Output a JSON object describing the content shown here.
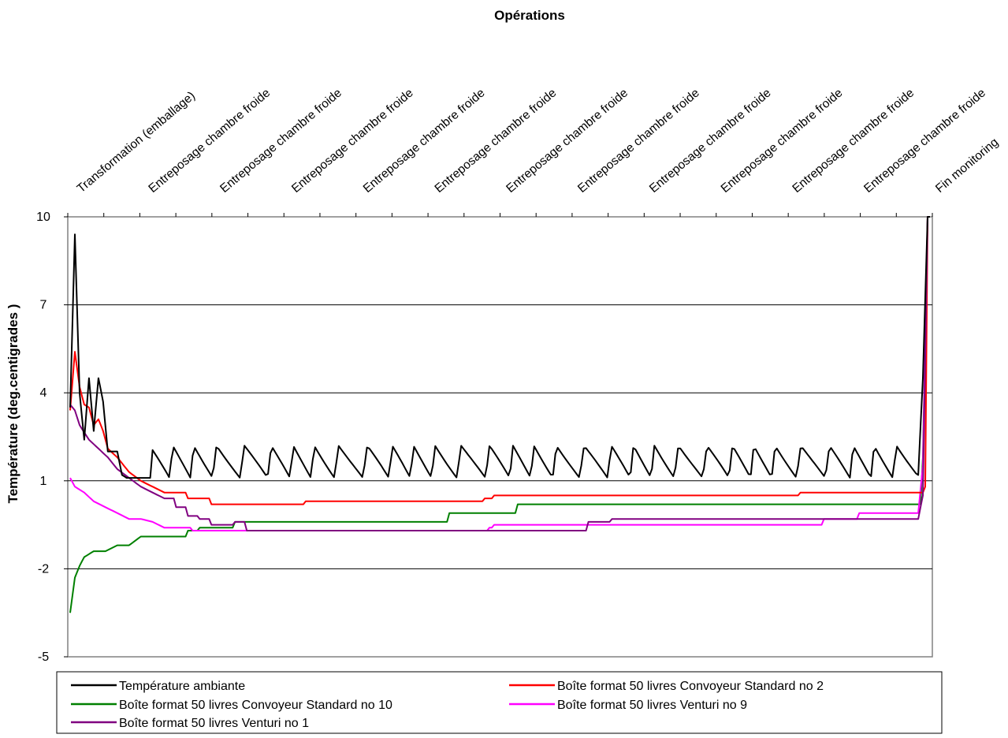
{
  "chart_data": {
    "type": "line",
    "title": "",
    "xlabel": "Opérations",
    "ylabel": "Température (deg.centigrades )",
    "ylim": [
      -5,
      10
    ],
    "yticks": [
      "10",
      "7",
      "4",
      "1",
      "-2",
      "-5"
    ],
    "ytick_values": [
      10,
      7,
      4,
      1,
      -2,
      -5
    ],
    "grid": "horizontal",
    "legend_position": "bottom",
    "x_axis_position": "top",
    "categories": [
      "Transformation (emballage)",
      "Entreposage chambre froide",
      "Entreposage chambre froide",
      "Entreposage chambre froide",
      "Entreposage chambre froide",
      "Entreposage chambre froide",
      "Entreposage chambre froide",
      "Entreposage chambre froide",
      "Entreposage chambre froide",
      "Entreposage chambre froide",
      "Entreposage chambre froide",
      "Entreposage chambre froide",
      "Fin monitoring"
    ],
    "n_points": 366,
    "series": [
      {
        "name": "Température ambiante",
        "color": "#000000",
        "pattern": "oscillating",
        "values_at_points": [
          [
            0,
            3.5
          ],
          [
            2,
            9.4
          ],
          [
            4,
            4.0
          ],
          [
            6,
            2.4
          ],
          [
            8,
            4.5
          ],
          [
            10,
            2.7
          ],
          [
            12,
            4.5
          ],
          [
            14,
            3.7
          ],
          [
            16,
            2.0
          ],
          [
            20,
            2.0
          ],
          [
            22,
            1.2
          ],
          [
            24,
            1.1
          ],
          [
            34,
            1.1
          ]
        ],
        "oscillation_low": 1.1,
        "oscillation_high": 2.2,
        "end_values": [
          [
            360,
            1.2
          ],
          [
            362,
            4.5
          ],
          [
            364,
            10.0
          ],
          [
            365,
            10.0
          ]
        ]
      },
      {
        "name": "Boîte format 50 livres Convoyeur Standard no 2",
        "color": "#ff0000",
        "values_at_points": [
          [
            0,
            3.4
          ],
          [
            2,
            5.4
          ],
          [
            4,
            4.2
          ],
          [
            6,
            3.6
          ],
          [
            8,
            3.5
          ],
          [
            10,
            2.9
          ],
          [
            12,
            3.1
          ],
          [
            14,
            2.7
          ],
          [
            16,
            2.1
          ],
          [
            20,
            1.8
          ],
          [
            25,
            1.3
          ],
          [
            30,
            1.0
          ],
          [
            35,
            0.8
          ],
          [
            40,
            0.6
          ],
          [
            50,
            0.4
          ],
          [
            60,
            0.2
          ],
          [
            90,
            0.2
          ],
          [
            100,
            0.3
          ],
          [
            120,
            0.3
          ],
          [
            175,
            0.3
          ],
          [
            176,
            0.4
          ],
          [
            180,
            0.5
          ],
          [
            300,
            0.5
          ],
          [
            310,
            0.6
          ],
          [
            362,
            0.6
          ],
          [
            363,
            0.8
          ],
          [
            364,
            10.0
          ]
        ]
      },
      {
        "name": "Boîte format 50 livres Convoyeur Standard no 10",
        "color": "#008000",
        "values_at_points": [
          [
            0,
            -3.5
          ],
          [
            2,
            -2.3
          ],
          [
            4,
            -1.9
          ],
          [
            6,
            -1.6
          ],
          [
            10,
            -1.4
          ],
          [
            15,
            -1.4
          ],
          [
            20,
            -1.2
          ],
          [
            25,
            -1.2
          ],
          [
            30,
            -0.9
          ],
          [
            45,
            -0.9
          ],
          [
            50,
            -0.7
          ],
          [
            55,
            -0.6
          ],
          [
            70,
            -0.4
          ],
          [
            80,
            -0.4
          ],
          [
            90,
            -0.4
          ],
          [
            160,
            -0.4
          ],
          [
            161,
            -0.1
          ],
          [
            180,
            -0.1
          ],
          [
            190,
            0.2
          ],
          [
            300,
            0.2
          ],
          [
            361,
            0.2
          ],
          [
            362,
            1.8
          ],
          [
            364,
            10.0
          ]
        ]
      },
      {
        "name": "Boîte format 50 livres Venturi no 9",
        "color": "#ff00ff",
        "values_at_points": [
          [
            0,
            1.1
          ],
          [
            2,
            0.8
          ],
          [
            6,
            0.6
          ],
          [
            10,
            0.3
          ],
          [
            15,
            0.1
          ],
          [
            20,
            -0.1
          ],
          [
            25,
            -0.3
          ],
          [
            30,
            -0.3
          ],
          [
            35,
            -0.4
          ],
          [
            40,
            -0.6
          ],
          [
            52,
            -0.7
          ],
          [
            60,
            -0.7
          ],
          [
            175,
            -0.7
          ],
          [
            178,
            -0.6
          ],
          [
            180,
            -0.5
          ],
          [
            300,
            -0.5
          ],
          [
            320,
            -0.3
          ],
          [
            335,
            -0.1
          ],
          [
            360,
            -0.1
          ],
          [
            362,
            1.5
          ],
          [
            364,
            10.0
          ]
        ]
      },
      {
        "name": "Boîte format 50 livres Venturi no 1",
        "color": "#800080",
        "values_at_points": [
          [
            0,
            3.6
          ],
          [
            2,
            3.4
          ],
          [
            4,
            2.9
          ],
          [
            8,
            2.4
          ],
          [
            12,
            2.1
          ],
          [
            16,
            1.8
          ],
          [
            20,
            1.4
          ],
          [
            25,
            1.1
          ],
          [
            30,
            0.8
          ],
          [
            35,
            0.6
          ],
          [
            40,
            0.4
          ],
          [
            45,
            0.1
          ],
          [
            50,
            -0.2
          ],
          [
            55,
            -0.3
          ],
          [
            60,
            -0.5
          ],
          [
            70,
            -0.4
          ],
          [
            75,
            -0.7
          ],
          [
            80,
            -0.7
          ],
          [
            180,
            -0.7
          ],
          [
            220,
            -0.4
          ],
          [
            230,
            -0.3
          ],
          [
            360,
            -0.3
          ],
          [
            362,
            0.5
          ],
          [
            364,
            10.0
          ]
        ]
      }
    ]
  }
}
